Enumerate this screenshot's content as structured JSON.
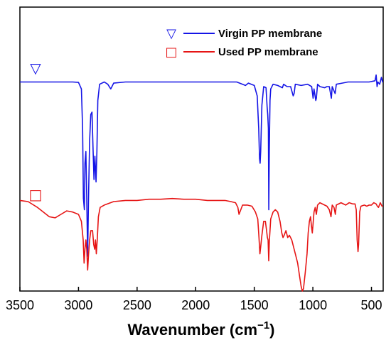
{
  "chart_data": {
    "type": "line",
    "xlabel_main": "Wavenumber (cm",
    "xlabel_sup": "−1",
    "xlabel_close": ")",
    "xlim": [
      3500,
      400
    ],
    "x_reversed": true,
    "xticks": [
      3500,
      3000,
      2500,
      2000,
      1500,
      1000,
      500
    ],
    "ylabel": "",
    "yticks": false,
    "grid": false,
    "legend_position": "top-right",
    "series": [
      {
        "name": "Virgin PP membrane",
        "color": "#1515e6",
        "marker_symbol": "▽",
        "points": [
          [
            3500,
            0.8
          ],
          [
            3200,
            0.8
          ],
          [
            3050,
            0.8
          ],
          [
            3000,
            0.798
          ],
          [
            2975,
            0.77
          ],
          [
            2965,
            0.6
          ],
          [
            2958,
            0.3
          ],
          [
            2950,
            0.25
          ],
          [
            2945,
            0.45
          ],
          [
            2937,
            0.5
          ],
          [
            2930,
            0.3
          ],
          [
            2922,
            0.05
          ],
          [
            2915,
            0.28
          ],
          [
            2905,
            0.55
          ],
          [
            2895,
            0.66
          ],
          [
            2885,
            0.67
          ],
          [
            2875,
            0.5
          ],
          [
            2868,
            0.38
          ],
          [
            2860,
            0.48
          ],
          [
            2850,
            0.37
          ],
          [
            2843,
            0.5
          ],
          [
            2835,
            0.72
          ],
          [
            2820,
            0.79
          ],
          [
            2780,
            0.8
          ],
          [
            2750,
            0.79
          ],
          [
            2725,
            0.77
          ],
          [
            2700,
            0.795
          ],
          [
            2600,
            0.8
          ],
          [
            2500,
            0.8
          ],
          [
            2400,
            0.8
          ],
          [
            2200,
            0.8
          ],
          [
            2000,
            0.8
          ],
          [
            1800,
            0.8
          ],
          [
            1650,
            0.8
          ],
          [
            1600,
            0.79
          ],
          [
            1575,
            0.785
          ],
          [
            1550,
            0.795
          ],
          [
            1500,
            0.785
          ],
          [
            1475,
            0.74
          ],
          [
            1462,
            0.6
          ],
          [
            1455,
            0.47
          ],
          [
            1450,
            0.45
          ],
          [
            1445,
            0.5
          ],
          [
            1435,
            0.7
          ],
          [
            1420,
            0.78
          ],
          [
            1400,
            0.775
          ],
          [
            1390,
            0.69
          ],
          [
            1385,
            0.66
          ],
          [
            1380,
            0.6
          ],
          [
            1376,
            0.25
          ],
          [
            1372,
            0.5
          ],
          [
            1366,
            0.72
          ],
          [
            1360,
            0.77
          ],
          [
            1340,
            0.79
          ],
          [
            1300,
            0.785
          ],
          [
            1260,
            0.775
          ],
          [
            1250,
            0.79
          ],
          [
            1220,
            0.78
          ],
          [
            1190,
            0.78
          ],
          [
            1168,
            0.74
          ],
          [
            1160,
            0.75
          ],
          [
            1150,
            0.79
          ],
          [
            1100,
            0.785
          ],
          [
            1045,
            0.79
          ],
          [
            1010,
            0.78
          ],
          [
            998,
            0.73
          ],
          [
            990,
            0.77
          ],
          [
            975,
            0.72
          ],
          [
            970,
            0.73
          ],
          [
            960,
            0.79
          ],
          [
            940,
            0.78
          ],
          [
            900,
            0.775
          ],
          [
            880,
            0.78
          ],
          [
            860,
            0.78
          ],
          [
            842,
            0.73
          ],
          [
            835,
            0.78
          ],
          [
            810,
            0.75
          ],
          [
            800,
            0.79
          ],
          [
            750,
            0.795
          ],
          [
            700,
            0.8
          ],
          [
            650,
            0.8
          ],
          [
            600,
            0.8
          ],
          [
            520,
            0.8
          ],
          [
            470,
            0.805
          ],
          [
            460,
            0.83
          ],
          [
            452,
            0.78
          ],
          [
            445,
            0.8
          ],
          [
            430,
            0.79
          ],
          [
            415,
            0.82
          ],
          [
            405,
            0.8
          ],
          [
            400,
            0.8
          ]
        ]
      },
      {
        "name": "Used PP membrane",
        "color": "#e61515",
        "marker_symbol": "□",
        "points": [
          [
            3500,
            0.29
          ],
          [
            3430,
            0.285
          ],
          [
            3350,
            0.26
          ],
          [
            3300,
            0.24
          ],
          [
            3250,
            0.22
          ],
          [
            3200,
            0.215
          ],
          [
            3150,
            0.23
          ],
          [
            3100,
            0.245
          ],
          [
            3050,
            0.24
          ],
          [
            3000,
            0.23
          ],
          [
            2975,
            0.2
          ],
          [
            2960,
            0.12
          ],
          [
            2952,
            0.02
          ],
          [
            2945,
            0.08
          ],
          [
            2937,
            0.12
          ],
          [
            2930,
            0.08
          ],
          [
            2922,
            -0.01
          ],
          [
            2915,
            0.05
          ],
          [
            2905,
            0.12
          ],
          [
            2895,
            0.16
          ],
          [
            2880,
            0.16
          ],
          [
            2870,
            0.1
          ],
          [
            2862,
            0.08
          ],
          [
            2855,
            0.12
          ],
          [
            2848,
            0.06
          ],
          [
            2840,
            0.12
          ],
          [
            2830,
            0.22
          ],
          [
            2815,
            0.26
          ],
          [
            2780,
            0.27
          ],
          [
            2700,
            0.285
          ],
          [
            2600,
            0.29
          ],
          [
            2500,
            0.29
          ],
          [
            2400,
            0.295
          ],
          [
            2300,
            0.295
          ],
          [
            2200,
            0.298
          ],
          [
            2100,
            0.295
          ],
          [
            2000,
            0.295
          ],
          [
            1900,
            0.29
          ],
          [
            1800,
            0.29
          ],
          [
            1750,
            0.29
          ],
          [
            1700,
            0.285
          ],
          [
            1660,
            0.28
          ],
          [
            1640,
            0.26
          ],
          [
            1630,
            0.23
          ],
          [
            1615,
            0.25
          ],
          [
            1600,
            0.27
          ],
          [
            1560,
            0.27
          ],
          [
            1520,
            0.265
          ],
          [
            1490,
            0.24
          ],
          [
            1470,
            0.21
          ],
          [
            1460,
            0.13
          ],
          [
            1452,
            0.06
          ],
          [
            1445,
            0.09
          ],
          [
            1435,
            0.14
          ],
          [
            1420,
            0.2
          ],
          [
            1405,
            0.2
          ],
          [
            1395,
            0.16
          ],
          [
            1388,
            0.13
          ],
          [
            1382,
            0.12
          ],
          [
            1377,
            0.03
          ],
          [
            1372,
            0.11
          ],
          [
            1360,
            0.21
          ],
          [
            1340,
            0.24
          ],
          [
            1320,
            0.25
          ],
          [
            1300,
            0.24
          ],
          [
            1280,
            0.2
          ],
          [
            1265,
            0.15
          ],
          [
            1255,
            0.13
          ],
          [
            1245,
            0.14
          ],
          [
            1230,
            0.16
          ],
          [
            1215,
            0.13
          ],
          [
            1200,
            0.14
          ],
          [
            1180,
            0.12
          ],
          [
            1165,
            0.09
          ],
          [
            1150,
            0.06
          ],
          [
            1130,
            0.02
          ],
          [
            1115,
            -0.03
          ],
          [
            1100,
            -0.08
          ],
          [
            1090,
            -0.1
          ],
          [
            1080,
            -0.09
          ],
          [
            1065,
            -0.02
          ],
          [
            1050,
            0.06
          ],
          [
            1040,
            0.15
          ],
          [
            1030,
            0.2
          ],
          [
            1020,
            0.22
          ],
          [
            1012,
            0.18
          ],
          [
            1005,
            0.15
          ],
          [
            998,
            0.19
          ],
          [
            990,
            0.24
          ],
          [
            980,
            0.26
          ],
          [
            970,
            0.23
          ],
          [
            960,
            0.27
          ],
          [
            940,
            0.28
          ],
          [
            900,
            0.27
          ],
          [
            880,
            0.265
          ],
          [
            860,
            0.25
          ],
          [
            845,
            0.22
          ],
          [
            835,
            0.27
          ],
          [
            820,
            0.26
          ],
          [
            808,
            0.23
          ],
          [
            800,
            0.27
          ],
          [
            760,
            0.28
          ],
          [
            720,
            0.27
          ],
          [
            690,
            0.28
          ],
          [
            660,
            0.275
          ],
          [
            640,
            0.275
          ],
          [
            630,
            0.25
          ],
          [
            622,
            0.12
          ],
          [
            615,
            0.07
          ],
          [
            610,
            0.1
          ],
          [
            600,
            0.24
          ],
          [
            590,
            0.265
          ],
          [
            560,
            0.27
          ],
          [
            540,
            0.265
          ],
          [
            520,
            0.27
          ],
          [
            500,
            0.27
          ],
          [
            480,
            0.28
          ],
          [
            460,
            0.275
          ],
          [
            450,
            0.265
          ],
          [
            440,
            0.26
          ],
          [
            425,
            0.28
          ],
          [
            410,
            0.265
          ],
          [
            400,
            0.265
          ]
        ]
      }
    ]
  }
}
